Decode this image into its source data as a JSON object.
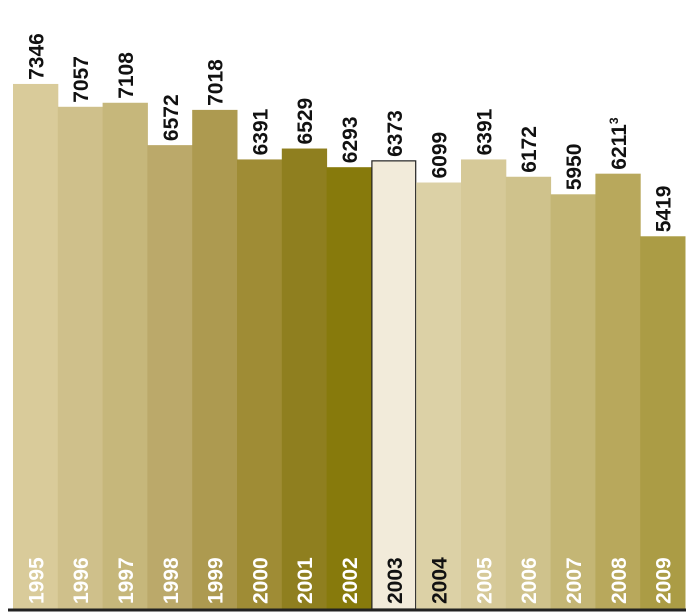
{
  "chart_data": {
    "type": "bar",
    "title": "",
    "xlabel": "",
    "ylabel": "",
    "categories": [
      "1995",
      "1996",
      "1997",
      "1998",
      "1999",
      "2000",
      "2001",
      "2002",
      "2003",
      "2004",
      "2005",
      "2006",
      "2007",
      "2008",
      "2009"
    ],
    "values": [
      7346,
      7057,
      7108,
      6572,
      7018,
      6391,
      6529,
      6293,
      6373,
      6099,
      6391,
      6172,
      5950,
      6211,
      5419
    ],
    "value_labels": [
      "7346",
      "7057",
      "7108",
      "6572",
      "7018",
      "6391",
      "6529",
      "6293",
      "6373",
      "6099",
      "6391",
      "6172",
      "5950",
      "6211",
      "5419"
    ],
    "footnotes": {
      "13": "3"
    },
    "colors": [
      "#d9cb9a",
      "#cfc08b",
      "#c6b77b",
      "#bba96a",
      "#ad9a50",
      "#9f8c35",
      "#8f7f1f",
      "#877a0c",
      "#f2ebda",
      "#dcd1a6",
      "#d6c998",
      "#cfc28c",
      "#c4b675",
      "#b8a85c",
      "#ab9c45"
    ],
    "highlight_index": 8,
    "highlight_stroke": "#222222",
    "year_label_colors": [
      "#ffffff",
      "#ffffff",
      "#ffffff",
      "#ffffff",
      "#ffffff",
      "#ffffff",
      "#ffffff",
      "#ffffff",
      "#111111",
      "#111111",
      "#ffffff",
      "#ffffff",
      "#ffffff",
      "#ffffff",
      "#ffffff"
    ],
    "baseline_color": "#222222",
    "grid": false,
    "legend": "none"
  }
}
